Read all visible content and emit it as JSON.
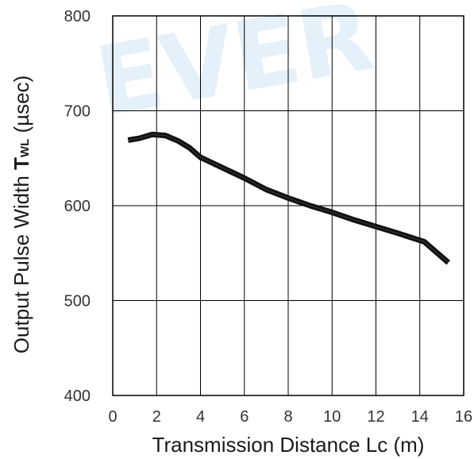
{
  "chart_data": {
    "type": "line",
    "title": "",
    "watermark": "EVER",
    "xlabel": "Transmission Distance Lc (m)",
    "ylabel": {
      "prefix": "Output Pulse Width ",
      "symbol": "T",
      "subscript": "WL",
      "suffix": " (µsec)"
    },
    "xlim": [
      0,
      16
    ],
    "ylim": [
      400,
      800
    ],
    "xticks": [
      0,
      2,
      4,
      6,
      8,
      10,
      12,
      14,
      16
    ],
    "yticks": [
      400,
      500,
      600,
      700,
      800
    ],
    "grid": true,
    "legend": "none",
    "series": [
      {
        "color": "#111111",
        "x": [
          0.7,
          1.2,
          1.8,
          2.4,
          3.0,
          3.5,
          4.0,
          5.0,
          6.0,
          7.0,
          8.0,
          9.0,
          10.0,
          11.0,
          12.0,
          13.0,
          14.2,
          15.3
        ],
        "y": [
          669,
          671,
          675,
          674,
          668,
          661,
          651,
          640,
          629,
          617,
          608,
          600,
          593,
          585,
          578,
          571,
          562,
          540
        ]
      }
    ]
  }
}
